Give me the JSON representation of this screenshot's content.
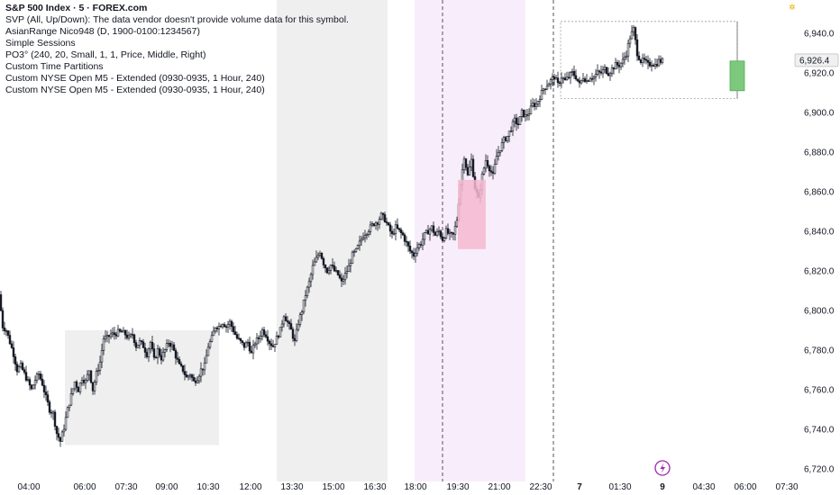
{
  "legend": {
    "symbol": "S&P 500 Index · 5 · FOREX.com",
    "lines": [
      "SVP (All, Up/Down): The data vendor doesn't provide volume data for this symbol.",
      "AsianRange Nico948 (D, 1900-0100:1234567)",
      "Simple Sessions",
      "PO3° (240, 20, Small, 1, 1, Price, Middle, Right)",
      "Custom Time Partitions",
      "Custom NYSE Open M5 - Extended (0930-0935, 1 Hour, 240)",
      "Custom NYSE Open M5 - Extended (0930-0935, 1 Hour, 240)"
    ]
  },
  "colors": {
    "candle": "#131722",
    "session_gray": "#efefef",
    "session_pink": "#f8eefb",
    "pink_box": "#f6b8d0",
    "green_box": "#7ec87e",
    "green_box_border": "#4caf50",
    "dashed": "#555555"
  },
  "chart_data": {
    "type": "candlestick",
    "ylim": [
      6715,
      6950
    ],
    "y_ticks": [
      6720,
      6740,
      6760,
      6780,
      6800,
      6820,
      6840,
      6860,
      6880,
      6900,
      6920,
      6940
    ],
    "y_tick_labels": [
      "6,720.0",
      "6,740.0",
      "6,760.0",
      "6,780.0",
      "6,800.0",
      "6,820.0",
      "6,840.0",
      "6,860.0",
      "6,880.0",
      "6,900.0",
      "6,920.0",
      "6,940.0"
    ],
    "x_ticks": [
      "04:00",
      "06:00",
      "07:30",
      "09:00",
      "10:30",
      "12:00",
      "13:30",
      "15:00",
      "16:30",
      "18:00",
      "19:30",
      "21:00",
      "22:30",
      "7",
      "01:30",
      "9",
      "04:30",
      "06:00",
      "07:30"
    ],
    "x_tick_bold": [
      "7",
      "9"
    ],
    "last_price": 6926.4,
    "last_price_label": "6,926.4",
    "price_path": [
      [
        0,
        6808
      ],
      [
        4,
        6792
      ],
      [
        8,
        6790
      ],
      [
        12,
        6784
      ],
      [
        16,
        6778
      ],
      [
        20,
        6770
      ],
      [
        24,
        6772
      ],
      [
        28,
        6768
      ],
      [
        32,
        6764
      ],
      [
        36,
        6760
      ],
      [
        40,
        6765
      ],
      [
        44,
        6768
      ],
      [
        48,
        6763
      ],
      [
        52,
        6756
      ],
      [
        56,
        6750
      ],
      [
        60,
        6748
      ],
      [
        64,
        6738
      ],
      [
        68,
        6734
      ],
      [
        72,
        6741
      ],
      [
        76,
        6750
      ],
      [
        80,
        6757
      ],
      [
        84,
        6764
      ],
      [
        88,
        6760
      ],
      [
        92,
        6766
      ],
      [
        96,
        6764
      ],
      [
        100,
        6770
      ],
      [
        104,
        6760
      ],
      [
        108,
        6768
      ],
      [
        112,
        6774
      ],
      [
        116,
        6786
      ],
      [
        120,
        6786
      ],
      [
        124,
        6788
      ],
      [
        128,
        6788
      ],
      [
        132,
        6789
      ],
      [
        136,
        6789
      ],
      [
        140,
        6788
      ],
      [
        144,
        6786
      ],
      [
        148,
        6788
      ],
      [
        152,
        6782
      ],
      [
        156,
        6784
      ],
      [
        160,
        6782
      ],
      [
        164,
        6778
      ],
      [
        168,
        6784
      ],
      [
        172,
        6775
      ],
      [
        176,
        6780
      ],
      [
        180,
        6776
      ],
      [
        184,
        6780
      ],
      [
        188,
        6784
      ],
      [
        192,
        6782
      ],
      [
        196,
        6777
      ],
      [
        200,
        6772
      ],
      [
        204,
        6770
      ],
      [
        208,
        6766
      ],
      [
        212,
        6768
      ],
      [
        216,
        6764
      ],
      [
        220,
        6766
      ],
      [
        224,
        6770
      ],
      [
        228,
        6772
      ],
      [
        232,
        6782
      ],
      [
        236,
        6786
      ],
      [
        240,
        6792
      ],
      [
        244,
        6792
      ],
      [
        248,
        6794
      ],
      [
        252,
        6792
      ],
      [
        256,
        6794
      ],
      [
        260,
        6790
      ],
      [
        264,
        6786
      ],
      [
        268,
        6784
      ],
      [
        272,
        6782
      ],
      [
        276,
        6784
      ],
      [
        280,
        6778
      ],
      [
        284,
        6784
      ],
      [
        288,
        6786
      ],
      [
        292,
        6790
      ],
      [
        296,
        6788
      ],
      [
        300,
        6784
      ],
      [
        304,
        6782
      ],
      [
        308,
        6786
      ],
      [
        312,
        6790
      ],
      [
        316,
        6798
      ],
      [
        320,
        6794
      ],
      [
        324,
        6790
      ],
      [
        328,
        6784
      ],
      [
        332,
        6794
      ],
      [
        336,
        6800
      ],
      [
        340,
        6808
      ],
      [
        344,
        6814
      ],
      [
        348,
        6822
      ],
      [
        352,
        6826
      ],
      [
        356,
        6830
      ],
      [
        360,
        6824
      ],
      [
        364,
        6820
      ],
      [
        368,
        6823
      ],
      [
        372,
        6820
      ],
      [
        376,
        6818
      ],
      [
        380,
        6814
      ],
      [
        384,
        6818
      ],
      [
        388,
        6822
      ],
      [
        392,
        6828
      ],
      [
        396,
        6830
      ],
      [
        400,
        6834
      ],
      [
        404,
        6838
      ],
      [
        408,
        6840
      ],
      [
        412,
        6842
      ],
      [
        416,
        6844
      ],
      [
        420,
        6845
      ],
      [
        424,
        6848
      ],
      [
        428,
        6846
      ],
      [
        432,
        6842
      ],
      [
        436,
        6838
      ],
      [
        440,
        6842
      ],
      [
        444,
        6840
      ],
      [
        448,
        6838
      ],
      [
        452,
        6834
      ],
      [
        456,
        6830
      ],
      [
        460,
        6828
      ],
      [
        464,
        6832
      ],
      [
        468,
        6834
      ],
      [
        472,
        6838
      ],
      [
        476,
        6840
      ],
      [
        480,
        6842
      ],
      [
        484,
        6838
      ],
      [
        488,
        6840
      ],
      [
        492,
        6836
      ],
      [
        496,
        6840
      ],
      [
        500,
        6838
      ],
      [
        504,
        6838
      ],
      [
        508,
        6846
      ],
      [
        512,
        6864
      ],
      [
        516,
        6878
      ],
      [
        520,
        6868
      ],
      [
        524,
        6876
      ],
      [
        528,
        6862
      ],
      [
        532,
        6856
      ],
      [
        536,
        6868
      ],
      [
        540,
        6876
      ],
      [
        544,
        6872
      ],
      [
        548,
        6868
      ],
      [
        552,
        6878
      ],
      [
        556,
        6882
      ],
      [
        560,
        6886
      ],
      [
        564,
        6888
      ],
      [
        568,
        6892
      ],
      [
        572,
        6896
      ],
      [
        576,
        6894
      ],
      [
        580,
        6900
      ],
      [
        584,
        6898
      ],
      [
        588,
        6900
      ],
      [
        592,
        6904
      ],
      [
        596,
        6904
      ],
      [
        600,
        6908
      ],
      [
        604,
        6912
      ],
      [
        608,
        6914
      ],
      [
        612,
        6916
      ],
      [
        616,
        6918
      ],
      [
        620,
        6914
      ],
      [
        624,
        6918
      ],
      [
        628,
        6916
      ],
      [
        632,
        6918
      ],
      [
        636,
        6920
      ],
      [
        640,
        6918
      ],
      [
        644,
        6914
      ],
      [
        648,
        6918
      ],
      [
        652,
        6916
      ],
      [
        656,
        6918
      ],
      [
        660,
        6918
      ],
      [
        664,
        6920
      ],
      [
        668,
        6920
      ],
      [
        672,
        6922
      ],
      [
        676,
        6920
      ],
      [
        680,
        6922
      ],
      [
        684,
        6924
      ],
      [
        688,
        6924
      ],
      [
        692,
        6926
      ],
      [
        696,
        6930
      ],
      [
        700,
        6938
      ],
      [
        704,
        6942
      ],
      [
        708,
        6930
      ],
      [
        712,
        6926
      ],
      [
        716,
        6926
      ],
      [
        720,
        6924
      ],
      [
        724,
        6925
      ],
      [
        728,
        6924
      ],
      [
        732,
        6926
      ],
      [
        736,
        6926
      ]
    ],
    "sessions": [
      {
        "kind": "gray",
        "x0": 307,
        "x1": 430
      },
      {
        "kind": "pink",
        "x0": 460,
        "x1": 583
      }
    ],
    "dashed_lines": [
      491,
      614
    ],
    "asian_ranges": [
      {
        "x0": 72,
        "x1": 243,
        "lo": 6732,
        "hi": 6790
      },
      {
        "x0": 622,
        "x1": 818,
        "lo": 6907,
        "hi": 6946
      }
    ],
    "pink_box": {
      "x0": 508,
      "x1": 539,
      "lo": 6831,
      "hi": 6866
    },
    "green_box": {
      "x0": 810,
      "x1": 826,
      "lo": 6911,
      "hi": 6926
    }
  }
}
